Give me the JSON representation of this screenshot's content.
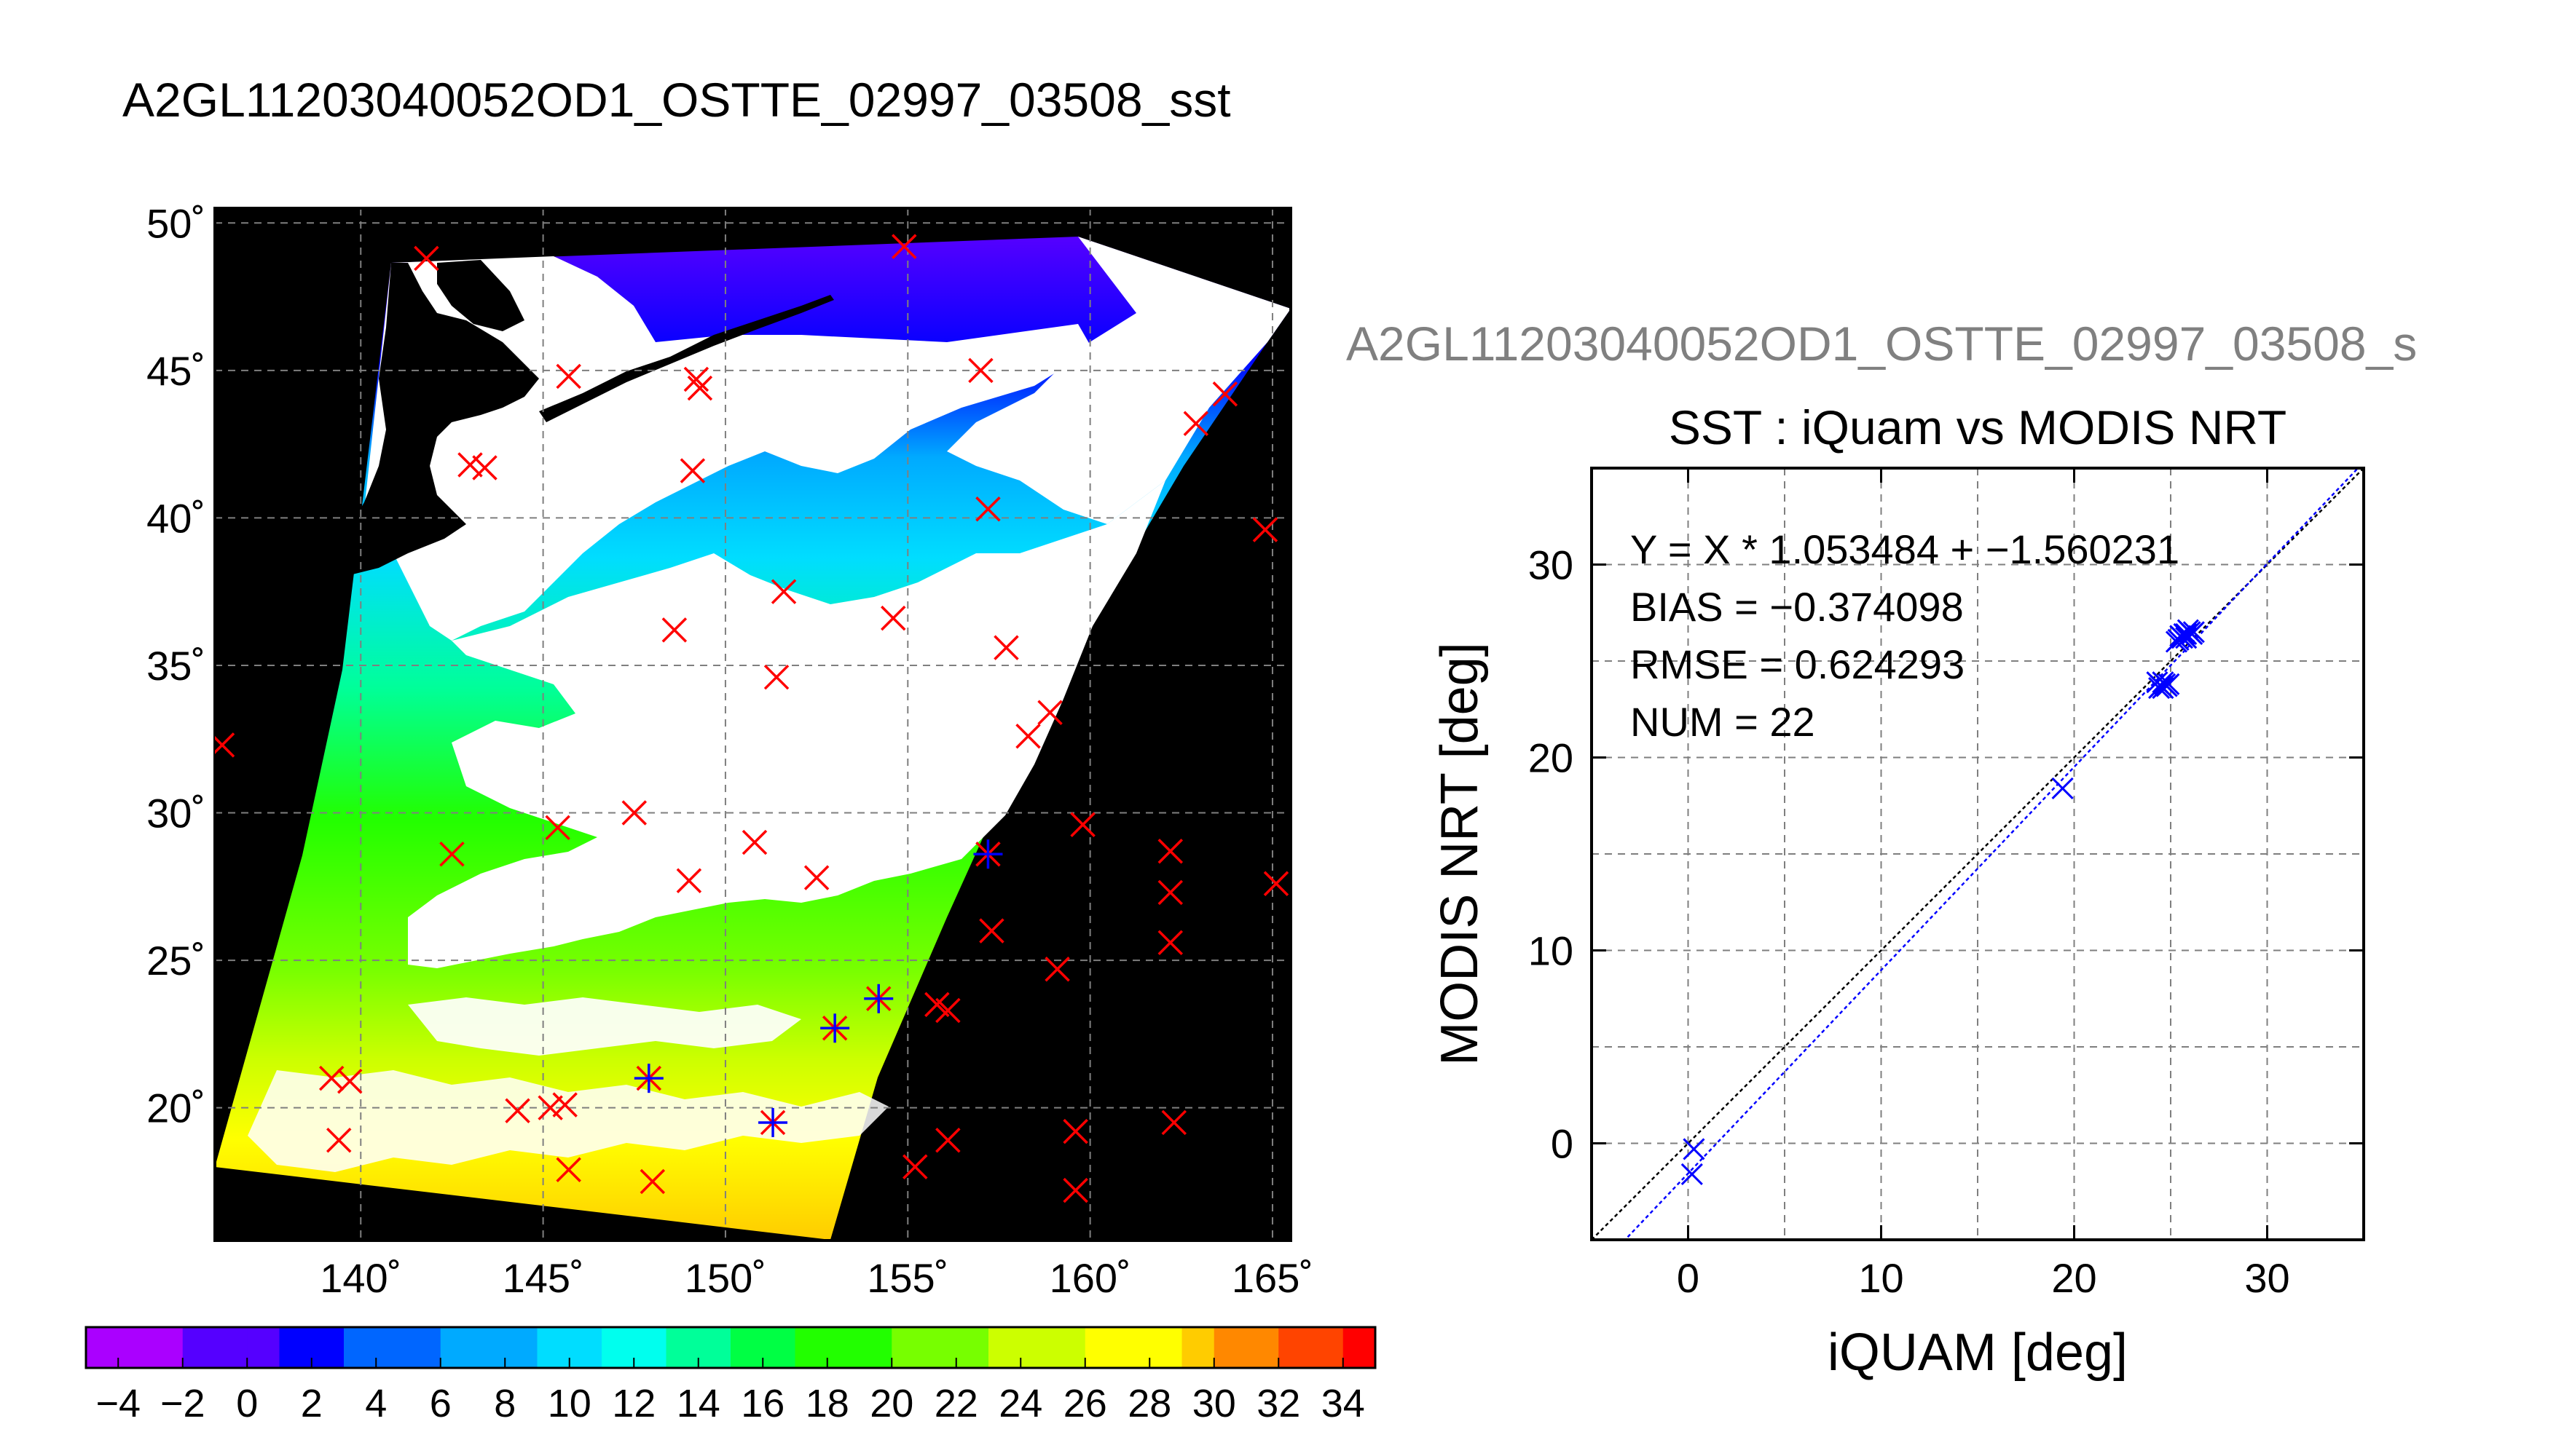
{
  "colors": {
    "background": "#ffffff",
    "land": "#000000",
    "cloud": "#ffffff",
    "iquam_marker": "#ff0000",
    "matchup_marker": "#0000ff",
    "fit_line": "#0000ff",
    "one_to_one_line": "#000000",
    "grid": "#808080"
  },
  "chart_data": [
    {
      "type": "map",
      "title": "A2GL11203040052OD1_OSTTE_02997_03508_sst",
      "xlim": [
        136,
        165.5
      ],
      "ylim": [
        15.5,
        50.5
      ],
      "x_ticks": [
        140,
        145,
        150,
        155,
        160,
        165
      ],
      "x_tick_labels": [
        "140˚",
        "145˚",
        "150˚",
        "155˚",
        "160˚",
        "165˚"
      ],
      "y_ticks": [
        20,
        25,
        30,
        35,
        40,
        45,
        50
      ],
      "y_tick_labels": [
        "20˚",
        "25˚",
        "30˚",
        "35˚",
        "40˚",
        "45˚",
        "50˚"
      ],
      "grid": true,
      "iquam_points": [
        [
          141.8,
          48.8
        ],
        [
          154.9,
          49.2
        ],
        [
          149.2,
          44.7
        ],
        [
          149.3,
          44.4
        ],
        [
          145.7,
          44.8
        ],
        [
          163.7,
          44.2
        ],
        [
          162.9,
          43.2
        ],
        [
          157.0,
          45.0
        ],
        [
          143.0,
          41.8
        ],
        [
          143.4,
          41.7
        ],
        [
          149.1,
          41.6
        ],
        [
          157.2,
          40.3
        ],
        [
          164.8,
          39.6
        ],
        [
          151.6,
          37.5
        ],
        [
          154.6,
          36.6
        ],
        [
          148.6,
          36.2
        ],
        [
          157.7,
          35.6
        ],
        [
          151.4,
          34.6
        ],
        [
          158.9,
          33.4
        ],
        [
          158.3,
          32.6
        ],
        [
          136.2,
          32.3
        ],
        [
          147.5,
          30.0
        ],
        [
          145.4,
          29.5
        ],
        [
          150.8,
          29.0
        ],
        [
          159.8,
          29.6
        ],
        [
          142.5,
          28.6
        ],
        [
          162.2,
          28.7
        ],
        [
          152.5,
          27.8
        ],
        [
          149.0,
          27.7
        ],
        [
          157.2,
          28.6
        ],
        [
          162.2,
          27.3
        ],
        [
          165.1,
          27.6
        ],
        [
          157.3,
          26.0
        ],
        [
          162.2,
          25.6
        ],
        [
          159.1,
          24.7
        ],
        [
          155.8,
          23.5
        ],
        [
          156.1,
          23.3
        ],
        [
          154.2,
          23.7
        ],
        [
          153.0,
          22.7
        ],
        [
          147.9,
          21.0
        ],
        [
          139.2,
          21.0
        ],
        [
          139.7,
          20.9
        ],
        [
          144.3,
          19.9
        ],
        [
          145.2,
          20.0
        ],
        [
          145.6,
          20.1
        ],
        [
          151.3,
          19.5
        ],
        [
          159.6,
          19.2
        ],
        [
          162.3,
          19.5
        ],
        [
          139.4,
          18.9
        ],
        [
          156.1,
          18.9
        ],
        [
          155.2,
          18.0
        ],
        [
          145.7,
          17.9
        ],
        [
          148.0,
          17.5
        ],
        [
          159.6,
          17.2
        ]
      ],
      "matchup_points": [
        [
          157.2,
          28.6
        ],
        [
          154.2,
          23.7
        ],
        [
          153.0,
          22.7
        ],
        [
          147.9,
          21.0
        ],
        [
          151.3,
          19.5
        ]
      ],
      "colorbar": {
        "range": [
          -5,
          35
        ],
        "tick_values": [
          -4,
          -2,
          0,
          2,
          4,
          6,
          8,
          10,
          12,
          14,
          16,
          18,
          20,
          22,
          24,
          26,
          28,
          30,
          32,
          34
        ],
        "tick_labels": [
          "−4",
          "−2",
          "0",
          "2",
          "4",
          "6",
          "8",
          "10",
          "12",
          "14",
          "16",
          "18",
          "20",
          "22",
          "24",
          "26",
          "28",
          "30",
          "32",
          "34"
        ],
        "stops": [
          [
            -5,
            "#ff00ff"
          ],
          [
            -2,
            "#aa00ff"
          ],
          [
            1,
            "#5500ff"
          ],
          [
            3,
            "#0000ff"
          ],
          [
            6,
            "#0066ff"
          ],
          [
            9,
            "#00aaff"
          ],
          [
            11,
            "#00ddff"
          ],
          [
            13,
            "#00ffee"
          ],
          [
            15,
            "#00ff99"
          ],
          [
            17,
            "#00ff44"
          ],
          [
            20,
            "#22ff00"
          ],
          [
            23,
            "#77ff00"
          ],
          [
            26,
            "#ccff00"
          ],
          [
            28.5,
            "#ffff00"
          ],
          [
            30,
            "#ffcc00"
          ],
          [
            32,
            "#ff8800"
          ],
          [
            34,
            "#ff4400"
          ],
          [
            35,
            "#ff0000"
          ]
        ]
      }
    },
    {
      "type": "scatter",
      "supertitle": "A2GL11203040052OD1_OSTTE_02997_03508_s",
      "title": "SST : iQuam vs MODIS NRT",
      "xlabel": "iQUAM [deg]",
      "ylabel": "MODIS NRT [deg]",
      "xlim": [
        -5,
        35
      ],
      "ylim": [
        -5,
        35
      ],
      "x_ticks": [
        0,
        10,
        20,
        30
      ],
      "y_ticks": [
        0,
        10,
        20,
        30
      ],
      "grid": true,
      "annotations": [
        "Y = X * 1.053484 + −1.560231",
        "BIAS = −0.374098",
        "RMSE = 0.624293",
        "NUM = 22"
      ],
      "fit": {
        "slope": 1.053484,
        "intercept": -1.560231
      },
      "points": [
        [
          0.2,
          -1.6
        ],
        [
          0.3,
          -0.3
        ],
        [
          19.4,
          18.4
        ],
        [
          24.3,
          23.9
        ],
        [
          24.5,
          23.7
        ],
        [
          24.8,
          23.7
        ],
        [
          24.6,
          23.9
        ],
        [
          24.7,
          23.8
        ],
        [
          24.4,
          23.6
        ],
        [
          24.9,
          23.8
        ],
        [
          24.6,
          23.6
        ],
        [
          25.4,
          26.1
        ],
        [
          25.7,
          26.4
        ],
        [
          25.8,
          26.2
        ],
        [
          26.0,
          26.5
        ],
        [
          25.5,
          26.3
        ],
        [
          25.9,
          26.6
        ],
        [
          26.1,
          26.4
        ],
        [
          25.6,
          26.2
        ],
        [
          25.3,
          26.0
        ],
        [
          26.2,
          26.5
        ],
        [
          25.8,
          26.4
        ]
      ]
    }
  ]
}
